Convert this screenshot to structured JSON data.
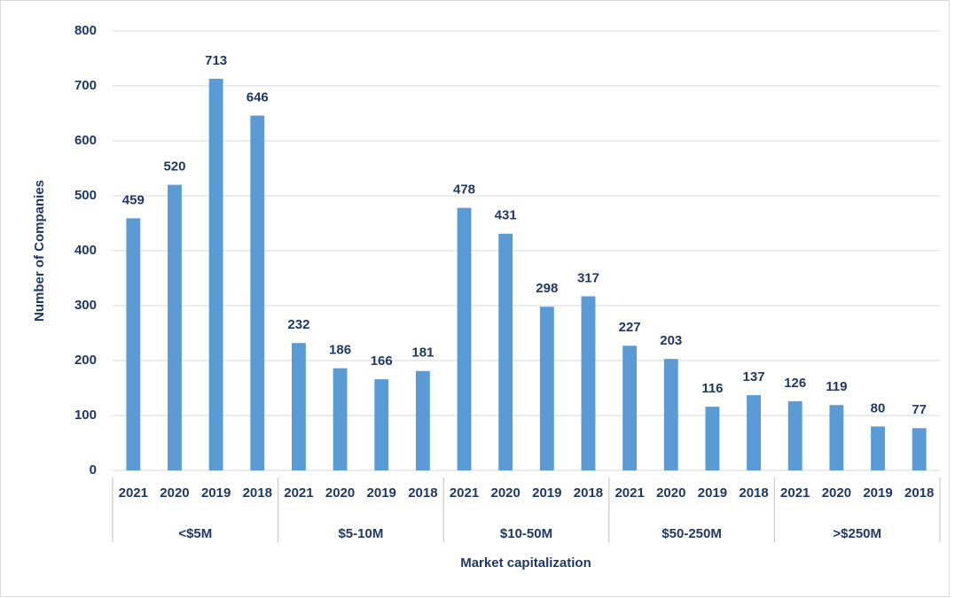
{
  "chart_data": {
    "type": "bar",
    "x_label": "Market capitalization",
    "y_label": "Number of Companies",
    "color": "#5b9bd5",
    "ylim": [
      0,
      800
    ],
    "yticks": [
      0,
      100,
      200,
      300,
      400,
      500,
      600,
      700,
      800
    ],
    "grid": true,
    "groups": [
      {
        "label": "<$5M",
        "categories": [
          "2021",
          "2020",
          "2019",
          "2018"
        ],
        "values": [
          459,
          520,
          713,
          646
        ]
      },
      {
        "label": "$5-10M",
        "categories": [
          "2021",
          "2020",
          "2019",
          "2018"
        ],
        "values": [
          232,
          186,
          166,
          181
        ]
      },
      {
        "label": "$10-50M",
        "categories": [
          "2021",
          "2020",
          "2019",
          "2018"
        ],
        "values": [
          478,
          431,
          298,
          317
        ]
      },
      {
        "label": "$50-250M",
        "categories": [
          "2021",
          "2020",
          "2019",
          "2018"
        ],
        "values": [
          227,
          203,
          116,
          137
        ]
      },
      {
        "label": ">$250M",
        "categories": [
          "2021",
          "2020",
          "2019",
          "2018"
        ],
        "values": [
          126,
          119,
          80,
          77
        ]
      }
    ]
  }
}
